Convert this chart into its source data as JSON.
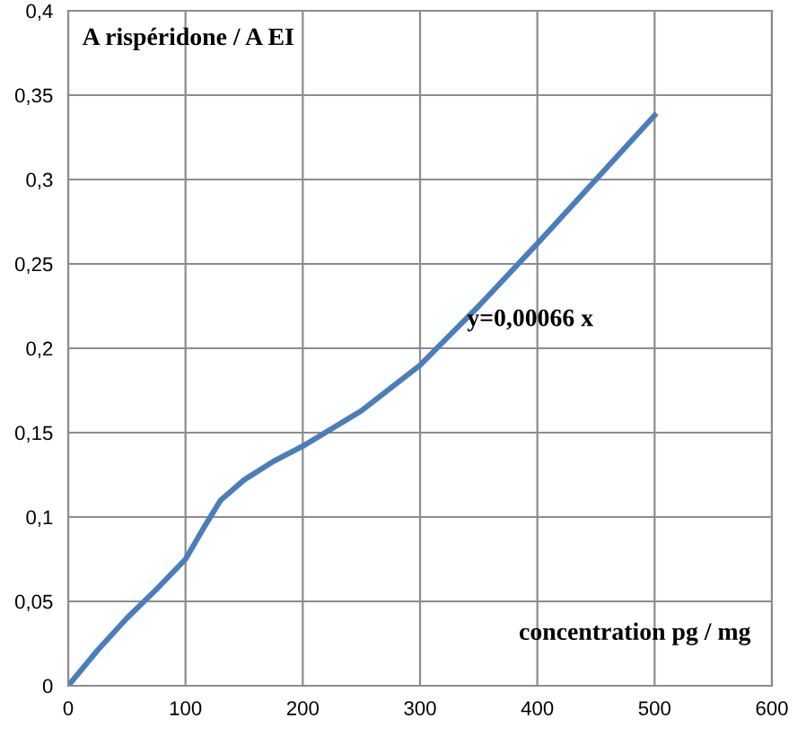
{
  "chart_data": {
    "type": "line",
    "x": [
      0,
      25,
      50,
      75,
      100,
      115,
      130,
      150,
      175,
      200,
      250,
      300,
      350,
      400,
      450,
      500
    ],
    "series": [
      {
        "color": "#4a7ebb",
        "values": [
          0,
          0.021,
          0.04,
          0.057,
          0.075,
          0.093,
          0.11,
          0.122,
          0.133,
          0.142,
          0.163,
          0.19,
          0.225,
          0.262,
          0.3,
          0.338
        ]
      }
    ],
    "xlabel": "concentration pg / mg",
    "ylabel": "A rispéridone / A EI",
    "annotations": [
      {
        "text": "y=0,00066 x",
        "x": 340,
        "y": 0.21
      }
    ],
    "xlim": [
      0,
      600
    ],
    "xticks": [
      0,
      100,
      200,
      300,
      400,
      500,
      600
    ],
    "ylim": [
      0,
      0.4
    ],
    "yticks": [
      0,
      {
        "value": 0.05,
        "label": "0,05"
      },
      {
        "value": 0.1,
        "label": "0,1"
      },
      {
        "value": 0.15,
        "label": "0,15"
      },
      {
        "value": 0.2,
        "label": "0,2"
      },
      {
        "value": 0.25,
        "label": "0,25"
      },
      {
        "value": 0.3,
        "label": "0,3"
      },
      {
        "value": 0.35,
        "label": "0,35"
      },
      {
        "value": 0.4,
        "label": "0,4"
      }
    ],
    "grid": true,
    "legend": false,
    "marker": "none",
    "line_style": "solid"
  }
}
